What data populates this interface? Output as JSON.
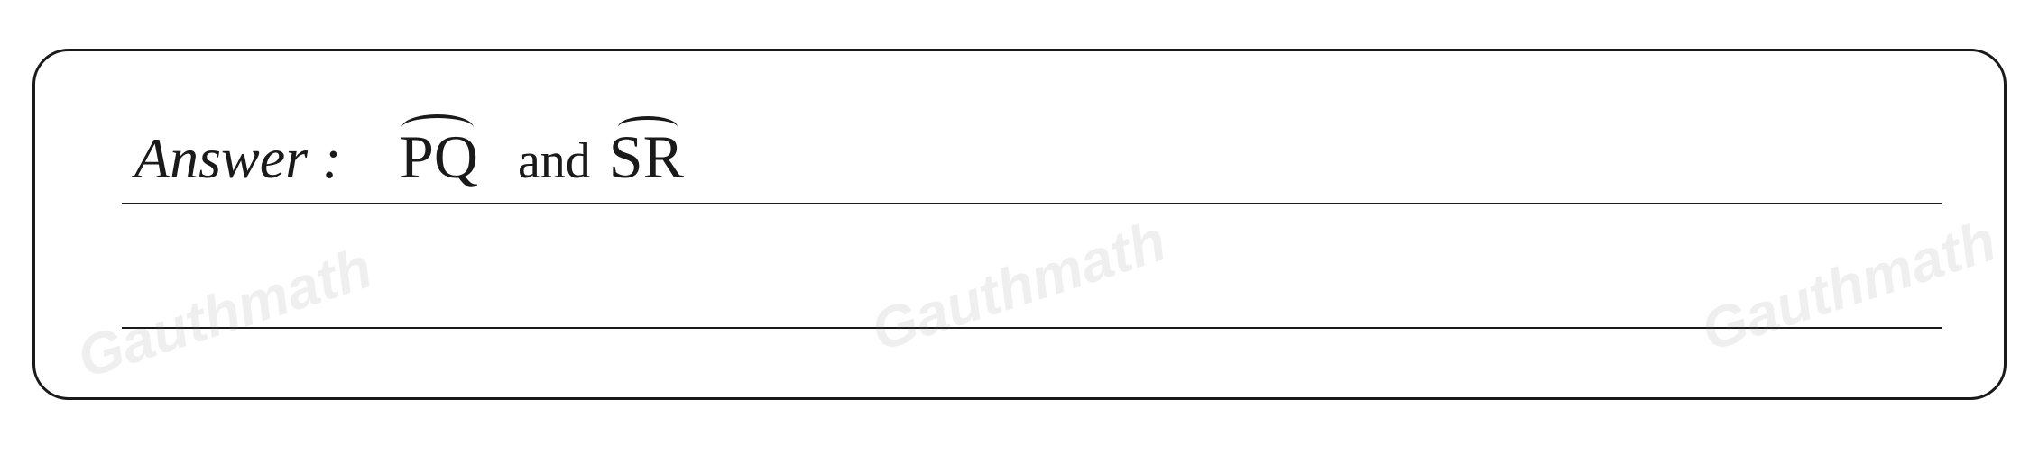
{
  "answer": {
    "label": "Answer :",
    "content": {
      "arc1": "PQ",
      "conjunction": "and",
      "arc2": "SR"
    }
  },
  "watermarks": {
    "text": "Gauthmath"
  },
  "styling": {
    "box_border_color": "#1a1a1a",
    "box_border_width": 3,
    "box_border_radius": 40,
    "line_color": "#1a1a1a",
    "text_color": "#1a1a1a",
    "background_color": "#ffffff",
    "watermark_color": "rgba(120, 120, 120, 0.12)",
    "label_fontsize": 64,
    "answer_fontsize": 68,
    "conjunction_fontsize": 56,
    "watermark_fontsize": 64
  }
}
